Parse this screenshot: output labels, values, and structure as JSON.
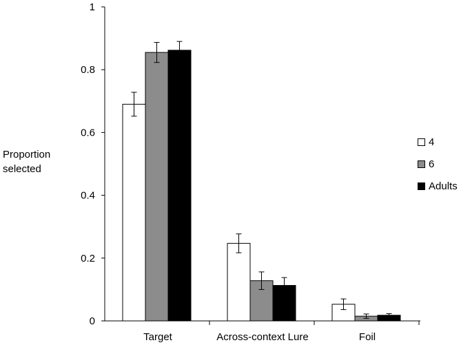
{
  "chart_data": {
    "type": "bar",
    "title": "",
    "ylabel_lines": [
      "Proportion",
      "selected"
    ],
    "xlabel": "",
    "categories": [
      "Target",
      "Across-context Lure",
      "Foil"
    ],
    "ylim": [
      0,
      1
    ],
    "yticks": [
      {
        "value": 0,
        "label": "0"
      },
      {
        "value": 0.2,
        "label": "0.2"
      },
      {
        "value": 0.4,
        "label": "0.4"
      },
      {
        "value": 0.6,
        "label": "0.6"
      },
      {
        "value": 0.8,
        "label": "0.8"
      },
      {
        "value": 1,
        "label": "1"
      }
    ],
    "legend_position": "right",
    "series": [
      {
        "name": "4",
        "color": "#ffffff",
        "values": [
          0.69,
          0.247,
          0.053
        ],
        "errors": [
          0.038,
          0.03,
          0.017
        ]
      },
      {
        "name": "6",
        "color": "#8c8c8c",
        "values": [
          0.855,
          0.128,
          0.015
        ],
        "errors": [
          0.032,
          0.028,
          0.007
        ]
      },
      {
        "name": "Adults",
        "color": "#000000",
        "values": [
          0.862,
          0.113,
          0.018
        ],
        "errors": [
          0.028,
          0.025,
          0.005
        ]
      }
    ]
  }
}
